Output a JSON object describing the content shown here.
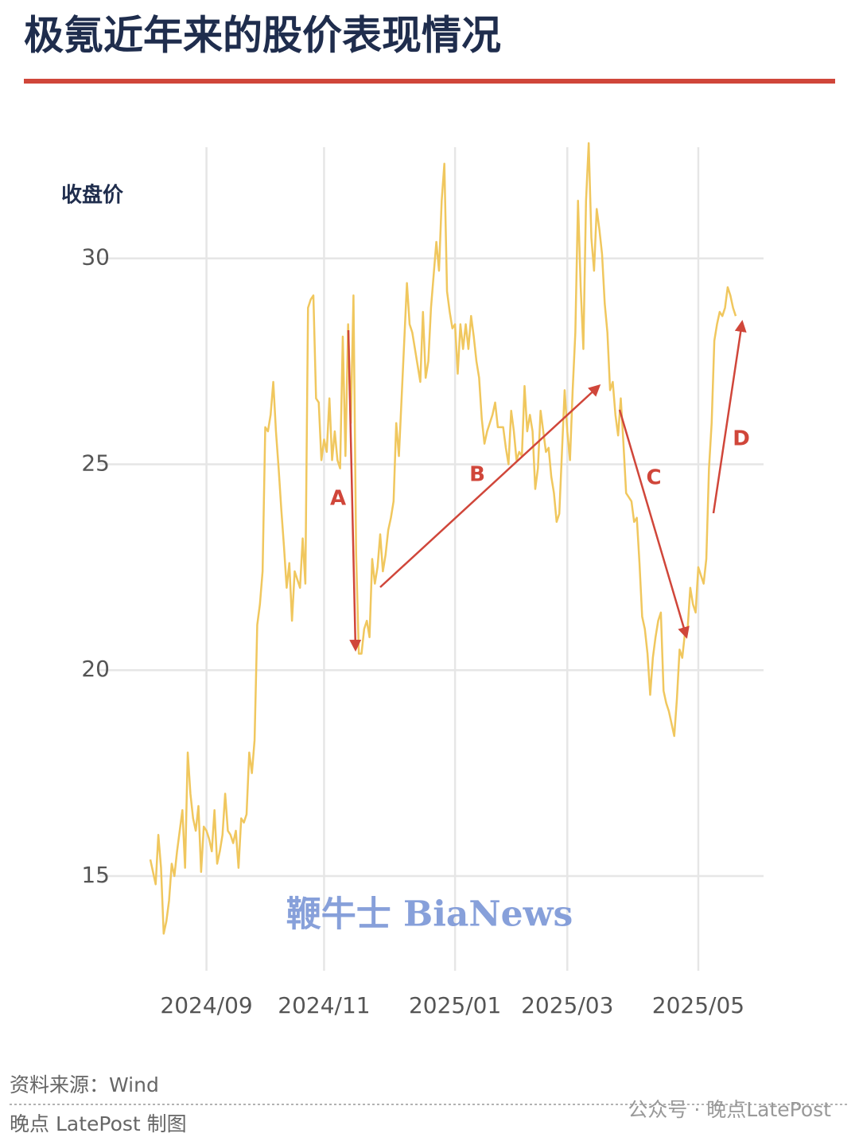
{
  "chart_data": {
    "type": "line",
    "title": "极氪近年来的股价表现情况",
    "y_label": "收盘价",
    "source": "资料来源：Wind",
    "credit": "晚点 LatePost 制图",
    "watermarks": [
      "鞭牛士 BiaNews",
      "公众号 · 晚点LatePost"
    ],
    "annotations": [
      "A",
      "B",
      "C",
      "D"
    ],
    "color": "#f0c75e",
    "grid": true,
    "ylim": [
      12.7,
      32.7
    ],
    "yticks": [
      15,
      20,
      25,
      30
    ],
    "categories": [
      null,
      null,
      null,
      null,
      null,
      null,
      null,
      null,
      null,
      null,
      null,
      null,
      null,
      null,
      null,
      null,
      null,
      null,
      null,
      null,
      null,
      "2024/09",
      null,
      null,
      null,
      null,
      null,
      null,
      null,
      null,
      null,
      null,
      null,
      null,
      null,
      null,
      null,
      null,
      null,
      null,
      null,
      null,
      null,
      null,
      null,
      null,
      null,
      null,
      null,
      null,
      null,
      null,
      null,
      null,
      null,
      null,
      null,
      null,
      null,
      null,
      null,
      null,
      null,
      null,
      null,
      "2024/11",
      null,
      null,
      null,
      null,
      null,
      null,
      null,
      null,
      null,
      null,
      null,
      null,
      null,
      null,
      null,
      null,
      null,
      null,
      null,
      null,
      null,
      null,
      null,
      null,
      null,
      null,
      null,
      null,
      null,
      null,
      null,
      null,
      null,
      null,
      null,
      null,
      null,
      null,
      null,
      null,
      null,
      null,
      null,
      null,
      null,
      null,
      null,
      null,
      "2025/01",
      null,
      null,
      null,
      null,
      null,
      null,
      null,
      null,
      null,
      null,
      null,
      null,
      null,
      null,
      null,
      null,
      null,
      null,
      null,
      null,
      null,
      null,
      null,
      null,
      null,
      null,
      null,
      null,
      null,
      null,
      null,
      null,
      null,
      null,
      null,
      null,
      null,
      null,
      null,
      null,
      null,
      "2025/03",
      null,
      null,
      null,
      null,
      null,
      null,
      null,
      null,
      null,
      null,
      null,
      null,
      null,
      null,
      null,
      null,
      null,
      null,
      null,
      null,
      null,
      null,
      null,
      null,
      null,
      null,
      null,
      null,
      null,
      null,
      null,
      null,
      null,
      null,
      null,
      null,
      null,
      null,
      null,
      null,
      null,
      null,
      null,
      null,
      null,
      null,
      null,
      null,
      "2025/05",
      null,
      null,
      null,
      null,
      null,
      null,
      null,
      null,
      null,
      null,
      null,
      null,
      null,
      null
    ],
    "values": [
      15.4,
      15.1,
      14.8,
      16.0,
      15.2,
      13.6,
      13.9,
      14.4,
      15.3,
      15.0,
      15.6,
      16.1,
      16.6,
      15.2,
      18.0,
      17.0,
      16.4,
      16.1,
      16.7,
      15.1,
      16.2,
      16.1,
      15.9,
      15.6,
      16.6,
      15.3,
      15.6,
      16.0,
      17.0,
      16.1,
      16.0,
      15.8,
      16.1,
      15.2,
      16.4,
      16.3,
      16.5,
      18.0,
      17.5,
      18.3,
      21.1,
      21.6,
      22.4,
      25.9,
      25.8,
      26.2,
      27.0,
      25.8,
      24.9,
      23.9,
      23.0,
      22.0,
      22.6,
      21.2,
      22.4,
      22.2,
      22.0,
      23.2,
      22.1,
      28.8,
      29.0,
      29.1,
      26.6,
      26.5,
      25.1,
      25.6,
      25.3,
      26.6,
      25.1,
      25.8,
      25.1,
      24.9,
      28.1,
      25.2,
      28.4,
      26.0,
      29.1,
      22.8,
      20.4,
      20.4,
      21.0,
      21.2,
      20.8,
      22.7,
      22.1,
      22.5,
      23.3,
      22.4,
      22.8,
      23.4,
      23.7,
      24.1,
      26.0,
      25.2,
      26.6,
      28.0,
      29.4,
      28.4,
      28.2,
      27.8,
      27.4,
      27.0,
      28.7,
      27.1,
      27.5,
      28.8,
      29.6,
      30.4,
      29.7,
      31.4,
      32.3,
      29.2,
      28.7,
      28.3,
      28.4,
      27.2,
      28.4,
      27.8,
      28.4,
      27.8,
      28.6,
      28.1,
      27.5,
      27.1,
      26.1,
      25.5,
      25.8,
      26.0,
      26.2,
      26.5,
      25.9,
      25.9,
      25.9,
      25.4,
      25.0,
      26.3,
      25.8,
      25.1,
      25.3,
      25.2,
      26.9,
      25.8,
      26.2,
      25.8,
      24.4,
      24.9,
      26.3,
      25.8,
      25.3,
      25.4,
      24.7,
      24.3,
      23.6,
      23.8,
      25.3,
      26.8,
      25.8,
      25.1,
      26.8,
      28.2,
      31.4,
      29.3,
      27.8,
      31.4,
      32.8,
      30.5,
      29.7,
      31.2,
      30.7,
      30.1,
      28.9,
      28.2,
      26.8,
      27.0,
      26.2,
      25.7,
      26.6,
      25.5,
      24.3,
      24.2,
      24.1,
      23.6,
      23.7,
      22.6,
      21.3,
      21.0,
      20.4,
      19.4,
      20.3,
      20.8,
      21.2,
      21.4,
      19.5,
      19.2,
      19.0,
      18.7,
      18.4,
      19.3,
      20.5,
      20.3,
      20.9,
      21.0,
      22.0,
      21.6,
      21.4,
      22.5,
      22.3,
      22.1,
      22.7,
      24.9,
      26.0,
      28.0,
      28.4,
      28.7,
      28.6,
      28.8,
      29.3,
      29.1,
      28.8,
      28.6
    ]
  }
}
